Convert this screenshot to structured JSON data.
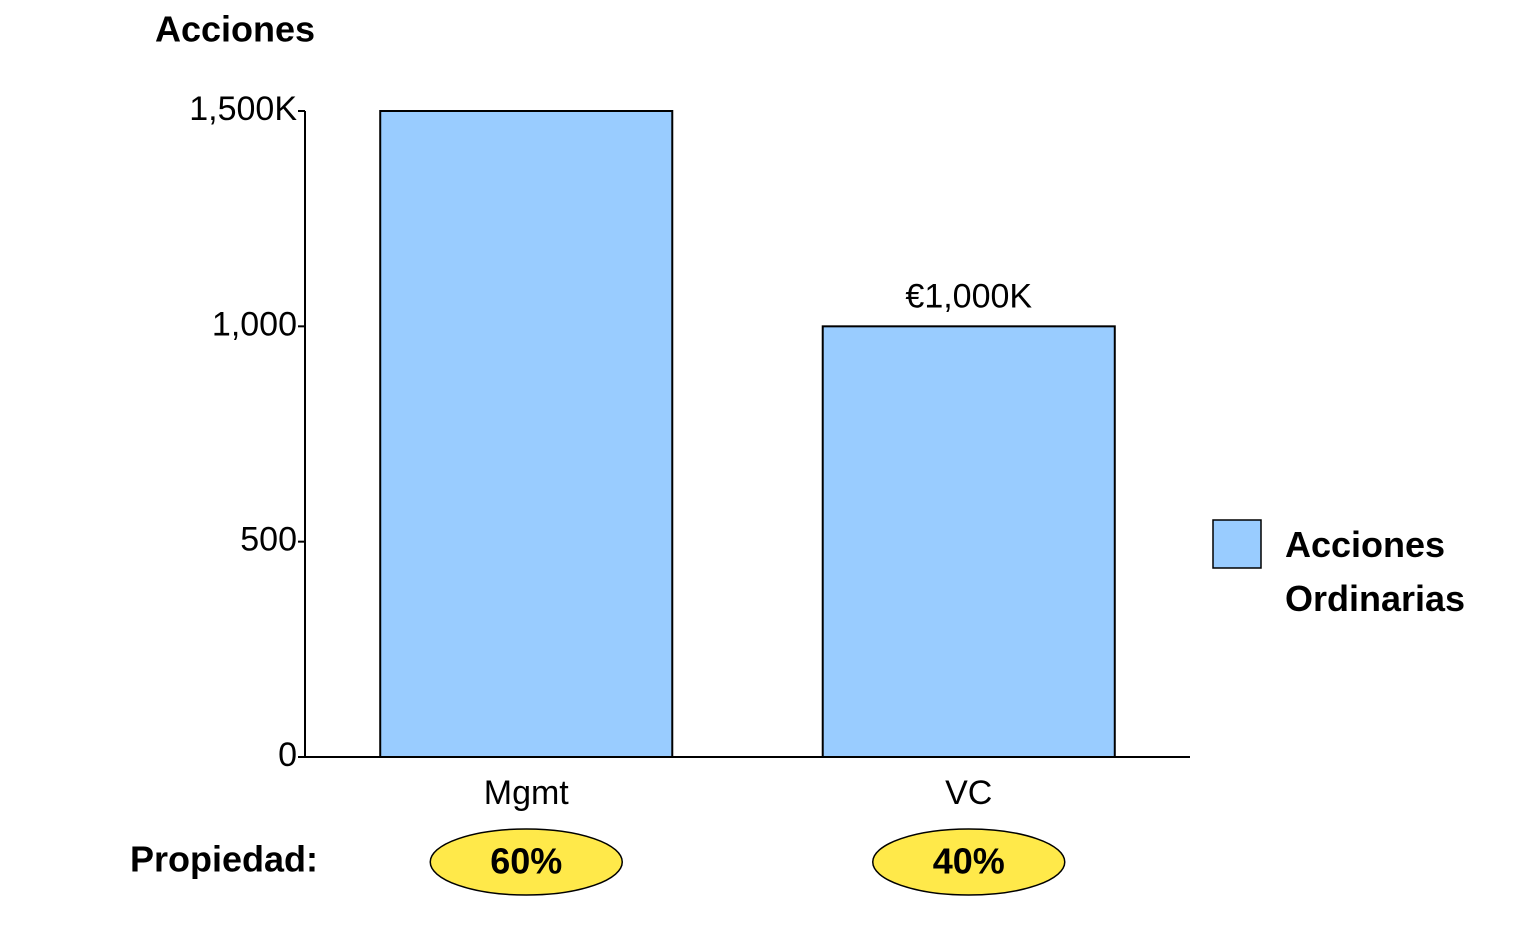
{
  "chart_data": {
    "type": "bar",
    "title": "Acciones",
    "categories": [
      "Mgmt",
      "VC"
    ],
    "series": [
      {
        "name": "Acciones Ordinarias",
        "color": "#99ccff",
        "values": [
          1500,
          1000
        ],
        "value_labels": [
          null,
          "€1,000K"
        ]
      }
    ],
    "ylim": [
      0,
      1500
    ],
    "yticks": [
      0,
      500,
      {
        "value": 1000,
        "label": "1,000"
      },
      {
        "value": 1500,
        "label": "1,500K"
      }
    ],
    "grid": false,
    "legend": "right",
    "ownership_title": "Propiedad:",
    "ownership": [
      60,
      40
    ],
    "ownership_labels": [
      "60%",
      "40%"
    ],
    "ownership_color": "#ffe94a"
  }
}
